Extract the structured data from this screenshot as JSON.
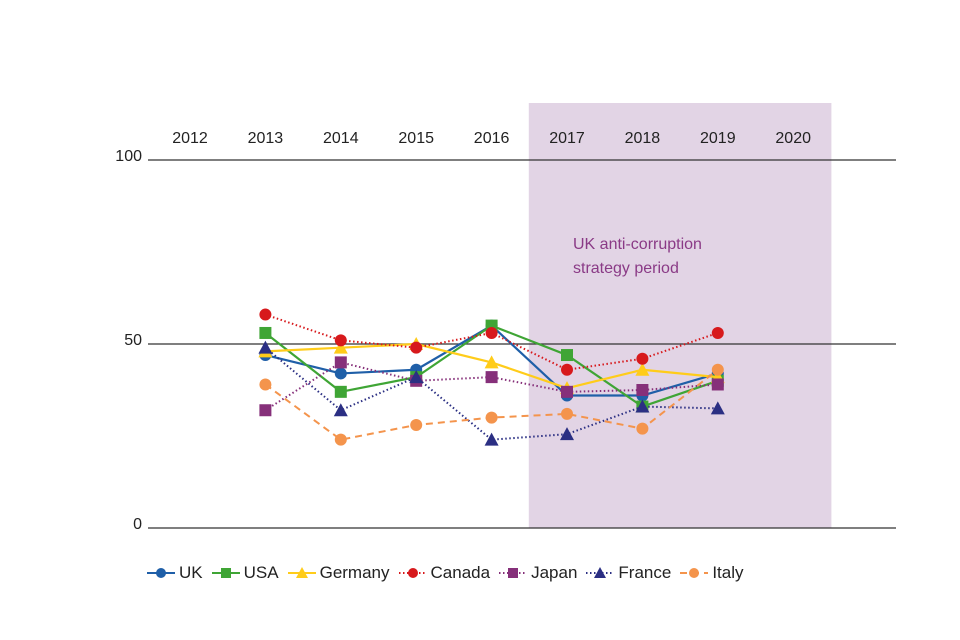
{
  "chart_data": {
    "type": "line",
    "title": "",
    "xlabel": "",
    "ylabel": "",
    "x": [
      "2012",
      "2013",
      "2014",
      "2015",
      "2016",
      "2017",
      "2018",
      "2019",
      "2020"
    ],
    "ylim": [
      0,
      100
    ],
    "yticks": [
      "0",
      "50",
      "100"
    ],
    "grid": "horizontal lines at 0, 50, 100",
    "legend_position": "bottom",
    "shaded_region": {
      "from": "2017",
      "to": "2020",
      "color": "#e2d4e5",
      "label_lines": [
        "UK anti-corruption",
        "strategy period"
      ]
    },
    "series": [
      {
        "name": "UK",
        "color": "#1f5fa8",
        "style": "solid",
        "marker": "circle",
        "values": [
          null,
          47,
          42,
          43,
          55,
          36,
          36,
          42,
          null
        ]
      },
      {
        "name": "USA",
        "color": "#3fa535",
        "style": "solid",
        "marker": "square",
        "values": [
          null,
          53,
          37,
          41,
          55,
          47,
          33,
          40,
          null
        ]
      },
      {
        "name": "Germany",
        "color": "#ffcc1a",
        "style": "solid",
        "marker": "triangle",
        "values": [
          null,
          48,
          49,
          50,
          45,
          38,
          43,
          41,
          null
        ]
      },
      {
        "name": "Canada",
        "color": "#d7191c",
        "style": "dotted",
        "marker": "circle",
        "values": [
          null,
          58,
          51,
          49,
          53,
          43,
          46,
          53,
          null
        ]
      },
      {
        "name": "Japan",
        "color": "#86307a",
        "style": "dotted",
        "marker": "square",
        "values": [
          null,
          32,
          45,
          40,
          41,
          37,
          37.5,
          39,
          null
        ]
      },
      {
        "name": "France",
        "color": "#2b2f83",
        "style": "dotted",
        "marker": "triangle",
        "values": [
          null,
          49,
          32,
          41,
          24,
          25.5,
          33,
          32.5,
          null
        ]
      },
      {
        "name": "Italy",
        "color": "#f4944c",
        "style": "dashed",
        "marker": "circle",
        "values": [
          null,
          39,
          24,
          28,
          30,
          31,
          27,
          43,
          null
        ]
      }
    ]
  }
}
